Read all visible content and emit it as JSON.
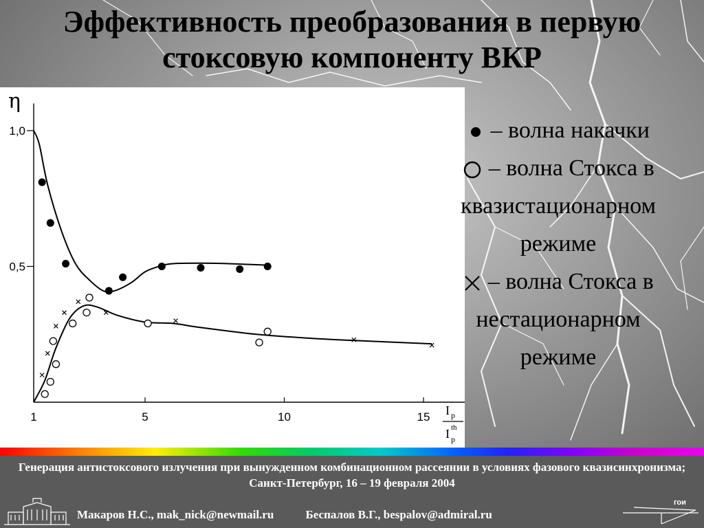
{
  "slide": {
    "title_line1": "Эффективность преобразования в первую",
    "title_line2": "стоксовую компоненту ВКР"
  },
  "legend": {
    "line1": "– волна накачки",
    "line2": "– волна Стокса в",
    "line3": "квазистационарном",
    "line4": "режиме",
    "line5": "– волна Стокса в",
    "line6": "нестационарном",
    "line7": "режиме",
    "sym_filled": "filled-circle-icon",
    "sym_open": "open-circle-icon",
    "sym_cross": "cross-icon"
  },
  "footer": {
    "conference": "Генерация антистоксового излучения при вынужденном комбинационном рассеянии в условиях фазового квазисинхронизма; Санкт-Петербург, 16 – 19 февраля  2004",
    "author1": "Макаров Н.С., mak_nick@newmail.ru",
    "author2": "Беспалов В.Г., bespalov@admiral.ru",
    "logo_text": "гои"
  },
  "colors": {
    "footer_bg": "#5a5a5a",
    "chart_bg": "#ffffff",
    "title": "#000000"
  },
  "chart_data": {
    "type": "scatter",
    "ylabel": "η",
    "xlabel_num": "I",
    "xlabel_num_sub": "p",
    "xlabel_den": "I",
    "xlabel_den_sub": "p",
    "xlabel_den_sup": "th",
    "xlim": [
      1,
      16.7
    ],
    "ylim": [
      0,
      1.1
    ],
    "x_ticks": [
      1,
      5,
      10,
      15
    ],
    "x_tick_labels": [
      "1",
      "5",
      "10",
      "15"
    ],
    "y_ticks": [
      0.5,
      1.0
    ],
    "y_tick_labels": [
      "0,5",
      "1,0"
    ],
    "grid": false,
    "legend": "right",
    "series": [
      {
        "symbol": "filled-circle",
        "points": [
          [
            1.3,
            0.81
          ],
          [
            1.6,
            0.66
          ],
          [
            2.15,
            0.51
          ],
          [
            3.7,
            0.41
          ],
          [
            4.2,
            0.46
          ],
          [
            5.6,
            0.5
          ],
          [
            7.0,
            0.495
          ],
          [
            8.4,
            0.49
          ],
          [
            9.4,
            0.5
          ]
        ],
        "curve": [
          [
            1.0,
            1.0
          ],
          [
            1.2,
            0.95
          ],
          [
            1.5,
            0.8
          ],
          [
            2.0,
            0.63
          ],
          [
            2.5,
            0.51
          ],
          [
            3.0,
            0.45
          ],
          [
            3.5,
            0.41
          ],
          [
            3.9,
            0.41
          ],
          [
            4.5,
            0.44
          ],
          [
            5.0,
            0.48
          ],
          [
            5.5,
            0.5
          ],
          [
            6.0,
            0.51
          ],
          [
            7.0,
            0.512
          ],
          [
            8.0,
            0.51
          ],
          [
            9.3,
            0.505
          ]
        ]
      },
      {
        "symbol": "open-circle",
        "points": [
          [
            1.4,
            0.03
          ],
          [
            1.6,
            0.075
          ],
          [
            1.7,
            0.225
          ],
          [
            1.8,
            0.14
          ],
          [
            2.4,
            0.29
          ],
          [
            2.9,
            0.33
          ],
          [
            3.0,
            0.385
          ],
          [
            5.1,
            0.29
          ],
          [
            9.1,
            0.22
          ],
          [
            9.4,
            0.26
          ]
        ]
      },
      {
        "symbol": "cross",
        "points": [
          [
            1.3,
            0.1
          ],
          [
            1.5,
            0.18
          ],
          [
            1.8,
            0.28
          ],
          [
            2.1,
            0.33
          ],
          [
            2.6,
            0.37
          ],
          [
            3.6,
            0.33
          ],
          [
            6.1,
            0.3
          ],
          [
            12.5,
            0.23
          ],
          [
            15.3,
            0.21
          ]
        ]
      },
      {
        "symbol": "line",
        "curve": [
          [
            1.0,
            0.0
          ],
          [
            1.4,
            0.08
          ],
          [
            1.8,
            0.2
          ],
          [
            2.3,
            0.31
          ],
          [
            2.8,
            0.355
          ],
          [
            3.3,
            0.35
          ],
          [
            4.0,
            0.32
          ],
          [
            5.0,
            0.295
          ],
          [
            6.0,
            0.29
          ],
          [
            7.0,
            0.275
          ],
          [
            9.0,
            0.25
          ],
          [
            11.0,
            0.235
          ],
          [
            13.0,
            0.225
          ],
          [
            15.3,
            0.215
          ]
        ]
      }
    ]
  }
}
